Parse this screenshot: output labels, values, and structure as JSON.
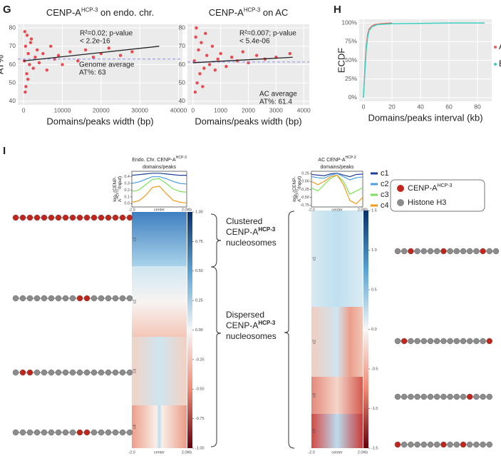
{
  "panel_letters": [
    "G",
    "H",
    "I"
  ],
  "chart_data": [
    {
      "type": "scatter",
      "title": "CENP-A",
      "title_sup": "HCP-3",
      "title_rest": " on endo. chr.",
      "xlabel": "Domains/peaks width (bp)",
      "ylabel": "AT%",
      "xlim": [
        -1500,
        41000
      ],
      "xticks": [
        0,
        10000,
        20000,
        30000,
        40000
      ],
      "ylim": [
        38,
        82
      ],
      "yticks": [
        40,
        50,
        60,
        70,
        80
      ],
      "grid": true,
      "color": "#e8202a",
      "x": [
        200,
        500,
        800,
        1200,
        1500,
        2000,
        2500,
        3000,
        3500,
        4000,
        5000,
        6000,
        7000,
        8000,
        9000,
        10000,
        12000,
        14000,
        16000,
        18000,
        20000,
        22000,
        25000,
        28000,
        300,
        400,
        600,
        900,
        1100,
        1800
      ],
      "y": [
        62,
        70,
        55,
        66,
        60,
        74,
        58,
        64,
        68,
        61,
        66,
        57,
        70,
        63,
        65,
        60,
        67,
        62,
        68,
        64,
        66,
        69,
        65,
        67,
        78,
        45,
        48,
        76,
        52,
        72
      ],
      "fit": {
        "x": [
          0,
          35000
        ],
        "y": [
          62,
          70
        ]
      },
      "average": 63,
      "annotation": [
        "R²=0.02; p-value",
        "< 2.2e-16"
      ],
      "average_label": [
        "Genome average",
        "AT%: 63"
      ]
    },
    {
      "type": "scatter",
      "title": "CENP-A",
      "title_sup": "HCP-3",
      "title_rest": " on AC",
      "xlabel": "Domains/peaks width (bp)",
      "xlim": [
        -200,
        4200
      ],
      "xticks": [
        0,
        1000,
        2000,
        3000,
        4000
      ],
      "ylim": [
        38,
        82
      ],
      "yticks": [
        40,
        50,
        60,
        70,
        80
      ],
      "grid": true,
      "color": "#e8202a",
      "x": [
        50,
        100,
        150,
        200,
        250,
        300,
        400,
        500,
        600,
        700,
        800,
        900,
        1000,
        1200,
        1400,
        1600,
        1800,
        2000,
        2300,
        2600,
        3000,
        3500,
        80,
        120,
        350,
        450
      ],
      "y": [
        62,
        75,
        50,
        68,
        55,
        72,
        58,
        65,
        60,
        70,
        57,
        63,
        66,
        59,
        64,
        62,
        67,
        61,
        65,
        63,
        64,
        66,
        45,
        80,
        48,
        77
      ],
      "fit": {
        "x": [
          0,
          3600
        ],
        "y": [
          61,
          64
        ]
      },
      "average": 61.4,
      "annotation": [
        "R²=0.007; p-value",
        "< 5.4e-06"
      ],
      "average_label": [
        "AC average",
        "AT%: 61.4"
      ]
    },
    {
      "type": "ecdf",
      "xlabel": "Domains/peaks interval (kb)",
      "ylabel": "ECDF",
      "xlim": [
        -3,
        90
      ],
      "xticks": [
        0,
        20,
        40,
        60,
        80
      ],
      "ylim": [
        -5,
        105
      ],
      "yticks": [
        {
          "value": 0,
          "label": "0%"
        },
        {
          "value": 25,
          "label": "25%"
        },
        {
          "value": 50,
          "label": "50%"
        },
        {
          "value": 75,
          "label": "75%"
        },
        {
          "value": 100,
          "label": "100%"
        }
      ],
      "grid": true,
      "legend": "right",
      "series": [
        {
          "name": "AC",
          "color": "#f0605a",
          "x": [
            0,
            1,
            2,
            3,
            4,
            6,
            8,
            12,
            20
          ],
          "values": [
            0,
            40,
            70,
            85,
            92,
            96,
            98,
            99,
            100
          ]
        },
        {
          "name": "Endo.",
          "color": "#3ecfc0",
          "x": [
            0,
            1,
            2,
            3,
            4,
            6,
            10,
            20,
            40,
            60,
            85
          ],
          "values": [
            0,
            35,
            65,
            82,
            90,
            95,
            98,
            99,
            99.5,
            100,
            100
          ]
        }
      ]
    },
    {
      "type": "heatmap",
      "title": "Endo. Chr. CENP-A",
      "title_sup": "HCP-3",
      "title_rest": "domains/peaks",
      "ylabel": {
        "line1": [
          "log",
          "2",
          " (CENP-"
        ],
        "line2": [
          "A",
          "HCP-3",
          "/Input)"
        ]
      },
      "x": [
        -2,
        -1.5,
        -1,
        -0.5,
        0,
        0.5,
        1,
        1.5,
        2
      ],
      "xticks": [
        {
          "value": -2,
          "label": "-2.0"
        },
        {
          "value": 0,
          "label": "center"
        },
        {
          "value": 2,
          "label": "2.0Kb"
        }
      ],
      "xlim": [
        -2,
        2
      ],
      "ylim": [
        -0.05,
        0.48
      ],
      "yticks": [
        {
          "value": 0,
          "label": "0.0"
        },
        0.1,
        0.2,
        0.3,
        0.4
      ],
      "series": [
        {
          "name": "c1",
          "color": "#1f3f99",
          "values": [
            0.42,
            0.43,
            0.44,
            0.45,
            0.45,
            0.44,
            0.43,
            0.42,
            0.42
          ]
        },
        {
          "name": "c2",
          "color": "#4f9fe0",
          "values": [
            0.3,
            0.32,
            0.36,
            0.4,
            0.4,
            0.37,
            0.33,
            0.3,
            0.29
          ]
        },
        {
          "name": "c3",
          "color": "#7ee05a",
          "values": [
            0.18,
            0.2,
            0.28,
            0.36,
            0.37,
            0.3,
            0.22,
            0.18,
            0.17
          ]
        },
        {
          "name": "c4",
          "color": "#f39a1c",
          "values": [
            0.02,
            0.04,
            0.12,
            0.24,
            0.26,
            0.15,
            0.05,
            0.02,
            0.01
          ]
        }
      ],
      "colorbar_lim": [
        -1,
        1
      ],
      "colorbar_ticks": [
        {
          "value": 1,
          "label": "1.00"
        },
        0.75,
        {
          "value": 0.5,
          "label": "0.50"
        },
        0.25,
        {
          "value": 0,
          "label": "0.00"
        },
        -0.25,
        {
          "value": -0.5,
          "label": "-0.50"
        },
        -0.75,
        {
          "value": -1,
          "label": "-1.00"
        }
      ]
    },
    {
      "type": "heatmap",
      "title": "AC CENP-A",
      "title_sup": "HCP-3",
      "title_rest": "domains/peaks",
      "ylabel": {
        "line1": [
          "log",
          "2",
          " (CENP-"
        ],
        "line2": [
          "A",
          "HCP-3",
          "/Input)"
        ]
      },
      "x": [
        -2,
        -1.5,
        -1,
        -0.5,
        0,
        0.5,
        1,
        1.5,
        2
      ],
      "xticks": [
        {
          "value": -2,
          "label": "-2.0"
        },
        {
          "value": 0,
          "label": "center"
        },
        {
          "value": 2,
          "label": "2.0Kb"
        }
      ],
      "xlim": [
        -2,
        2
      ],
      "ylim": [
        -0.8,
        0.32
      ],
      "yticks": [
        -0.75,
        {
          "value": -0.5,
          "label": "-0.50"
        },
        -0.25,
        {
          "value": 0,
          "label": "0.00"
        },
        0.25
      ],
      "series": [
        {
          "name": "c1",
          "color": "#1f3f99",
          "values": [
            0.22,
            0.2,
            0.18,
            0.24,
            0.26,
            0.2,
            0.15,
            0.22,
            0.23
          ]
        },
        {
          "name": "c2",
          "color": "#4f9fe0",
          "values": [
            0.15,
            0.12,
            0.1,
            0.2,
            0.25,
            0.15,
            0.05,
            0.12,
            0.14
          ]
        },
        {
          "name": "c3",
          "color": "#7ee05a",
          "values": [
            -0.2,
            -0.3,
            -0.1,
            0.1,
            0.2,
            0.0,
            -0.4,
            -0.3,
            -0.2
          ]
        },
        {
          "name": "c4",
          "color": "#f39a1c",
          "values": [
            0.0,
            -0.1,
            0.0,
            0.15,
            0.2,
            -0.1,
            -0.6,
            -0.7,
            -0.5
          ]
        }
      ],
      "colorbar_lim": [
        -1.5,
        1.5
      ],
      "colorbar_ticks": [
        1.5,
        {
          "value": 1,
          "label": "1.0"
        },
        0.5,
        {
          "value": 0,
          "label": "0.0"
        },
        -0.5,
        {
          "value": -1,
          "label": "-1.0"
        },
        -1.5
      ]
    }
  ],
  "braces": [
    {
      "lines": [
        "Clustered",
        "CENP-A",
        "nucleosomes"
      ],
      "sup": "HCP-3"
    },
    {
      "lines": [
        "Dispersed",
        "CENP-A",
        "nucleosomes"
      ],
      "sup": "HCP-3"
    }
  ],
  "nucleosome_legend": {
    "cenp": "CENP-A",
    "cenp_sup": "HCP-3",
    "histone": "Histone H3"
  }
}
